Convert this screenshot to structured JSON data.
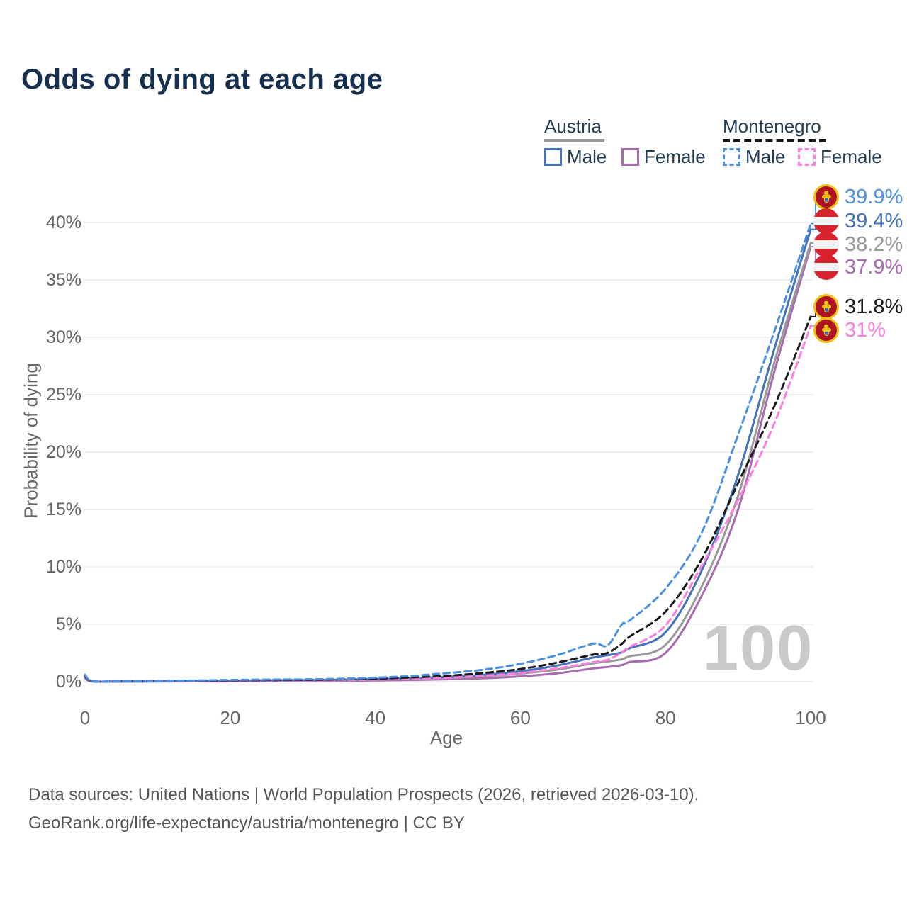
{
  "title": "Odds of dying at each age",
  "watermark_age": "100",
  "legend": {
    "austria": {
      "label": "Austria",
      "male": "Male",
      "female": "Female"
    },
    "montenegro": {
      "label": "Montenegro",
      "male": "Male",
      "female": "Female"
    }
  },
  "axes": {
    "y_label": "Probability of dying",
    "x_label": "Age",
    "y_ticks": [
      "0%",
      "5%",
      "10%",
      "15%",
      "20%",
      "25%",
      "30%",
      "35%",
      "40%"
    ],
    "x_ticks": [
      "0",
      "20",
      "40",
      "60",
      "80",
      "100"
    ]
  },
  "footer": {
    "line1": "Data sources: United Nations | World Population Prospects (2026, retrieved 2026-03-10).",
    "line2": "GeoRank.org/life-expectancy/austria/montenegro | CC BY"
  },
  "chart_data": {
    "type": "line",
    "title": "Odds of dying at each age",
    "xlabel": "Age",
    "ylabel": "Probability of dying",
    "xlim": [
      0,
      100
    ],
    "ylim": [
      0,
      42
    ],
    "y_unit": "percent",
    "grid": "horizontal",
    "legend_position": "top-right",
    "x": [
      0,
      1,
      5,
      10,
      15,
      20,
      25,
      30,
      35,
      40,
      45,
      50,
      55,
      60,
      65,
      70,
      72,
      74,
      75,
      80,
      85,
      90,
      95,
      100
    ],
    "series": [
      {
        "name": "Montenegro Male",
        "country": "montenegro",
        "sex": "male",
        "style": "dashed",
        "color": "#4a90e2",
        "end_label": "39.9%",
        "end_value": 39.9,
        "values": [
          0.6,
          0.05,
          0.04,
          0.05,
          0.1,
          0.15,
          0.18,
          0.2,
          0.25,
          0.35,
          0.5,
          0.75,
          1.05,
          1.55,
          2.3,
          3.3,
          3.15,
          5.0,
          5.3,
          8.1,
          13.0,
          21.5,
          30.5,
          39.9
        ]
      },
      {
        "name": "Austria Male",
        "country": "austria",
        "sex": "male",
        "style": "solid",
        "color": "#4472b8",
        "end_label": "39.4%",
        "end_value": 39.4,
        "values": [
          0.4,
          0.03,
          0.02,
          0.03,
          0.06,
          0.09,
          0.11,
          0.13,
          0.16,
          0.22,
          0.3,
          0.42,
          0.6,
          0.9,
          1.4,
          2.1,
          2.3,
          2.55,
          2.9,
          4.3,
          9.7,
          18.0,
          29.0,
          39.4
        ]
      },
      {
        "name": "Austria (both sexes)",
        "country": "austria",
        "sex": "both",
        "style": "solid",
        "color": "#999999",
        "end_label": "38.2%",
        "end_value": 38.2,
        "values": [
          0.35,
          0.025,
          0.02,
          0.025,
          0.05,
          0.07,
          0.09,
          0.1,
          0.13,
          0.17,
          0.24,
          0.33,
          0.47,
          0.7,
          1.05,
          1.6,
          1.75,
          1.95,
          2.2,
          3.2,
          8.3,
          16.2,
          27.8,
          38.2
        ]
      },
      {
        "name": "Austria Female",
        "country": "austria",
        "sex": "female",
        "style": "solid",
        "color": "#a86bb0",
        "end_label": "37.9%",
        "end_value": 37.9,
        "values": [
          0.3,
          0.02,
          0.015,
          0.02,
          0.03,
          0.04,
          0.05,
          0.06,
          0.08,
          0.11,
          0.15,
          0.21,
          0.3,
          0.46,
          0.72,
          1.15,
          1.28,
          1.45,
          1.7,
          2.5,
          7.5,
          15.0,
          27.0,
          37.9
        ]
      },
      {
        "name": "Montenegro (both sexes)",
        "country": "montenegro",
        "sex": "both",
        "style": "dashed",
        "color": "#1a1a1a",
        "end_label": "31.8%",
        "end_value": 31.8,
        "values": [
          0.5,
          0.04,
          0.03,
          0.04,
          0.08,
          0.11,
          0.13,
          0.15,
          0.19,
          0.26,
          0.37,
          0.52,
          0.76,
          1.1,
          1.65,
          2.35,
          2.5,
          3.3,
          3.9,
          6.1,
          10.7,
          17.3,
          24.0,
          31.8
        ]
      },
      {
        "name": "Montenegro Female",
        "country": "montenegro",
        "sex": "female",
        "style": "dashed",
        "color": "#ff7ce0",
        "end_label": "31%",
        "end_value": 31.0,
        "values": [
          0.45,
          0.035,
          0.025,
          0.03,
          0.05,
          0.07,
          0.09,
          0.1,
          0.13,
          0.18,
          0.25,
          0.36,
          0.52,
          0.75,
          1.15,
          1.7,
          1.9,
          2.55,
          3.0,
          4.9,
          10.1,
          15.8,
          22.5,
          31.0
        ]
      }
    ]
  }
}
